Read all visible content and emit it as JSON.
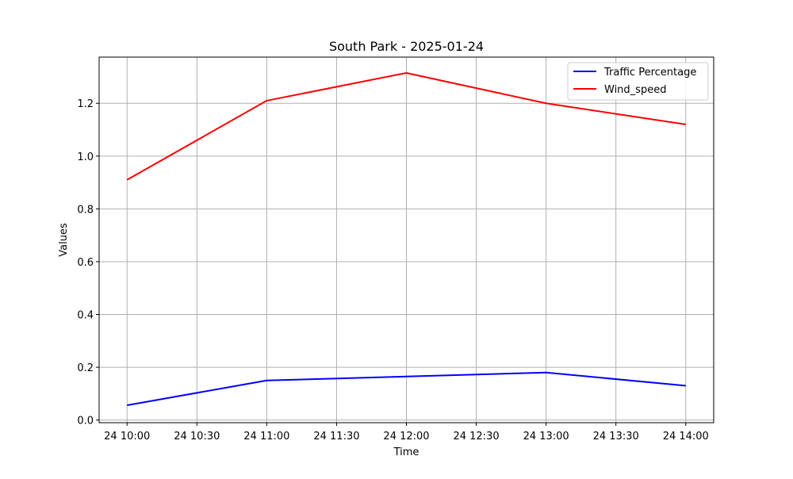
{
  "chart_data": {
    "type": "line",
    "title": "South Park - 2025-01-24",
    "xlabel": "Time",
    "ylabel": "Values",
    "x": [
      "2025-01-24 10:00",
      "2025-01-24 11:00",
      "2025-01-24 12:00",
      "2025-01-24 13:00",
      "2025-01-24 14:00"
    ],
    "xlim": [
      "2025-01-24 09:48",
      "2025-01-24 14:12"
    ],
    "ylim": [
      -0.01,
      1.375
    ],
    "x_ticks": [
      {
        "value": "2025-01-24 10:00",
        "label": "24 10:00"
      },
      {
        "value": "2025-01-24 10:30",
        "label": "24 10:30"
      },
      {
        "value": "2025-01-24 11:00",
        "label": "24 11:00"
      },
      {
        "value": "2025-01-24 11:30",
        "label": "24 11:30"
      },
      {
        "value": "2025-01-24 12:00",
        "label": "24 12:00"
      },
      {
        "value": "2025-01-24 12:30",
        "label": "24 12:30"
      },
      {
        "value": "2025-01-24 13:00",
        "label": "24 13:00"
      },
      {
        "value": "2025-01-24 13:30",
        "label": "24 13:30"
      },
      {
        "value": "2025-01-24 14:00",
        "label": "24 14:00"
      }
    ],
    "y_ticks": [
      {
        "value": 0.0,
        "label": "0.0"
      },
      {
        "value": 0.2,
        "label": "0.2"
      },
      {
        "value": 0.4,
        "label": "0.4"
      },
      {
        "value": 0.6,
        "label": "0.6"
      },
      {
        "value": 0.8,
        "label": "0.8"
      },
      {
        "value": 1.0,
        "label": "1.0"
      },
      {
        "value": 1.2,
        "label": "1.2"
      }
    ],
    "grid": true,
    "legend_position": "top-right",
    "series": [
      {
        "name": "Traffic Percentage",
        "color": "#0000ff",
        "values": [
          0.056,
          0.15,
          0.165,
          0.18,
          0.13
        ]
      },
      {
        "name": "Wind_speed",
        "color": "#ff0000",
        "values": [
          0.91,
          1.21,
          1.315,
          1.2,
          1.12
        ]
      }
    ]
  }
}
